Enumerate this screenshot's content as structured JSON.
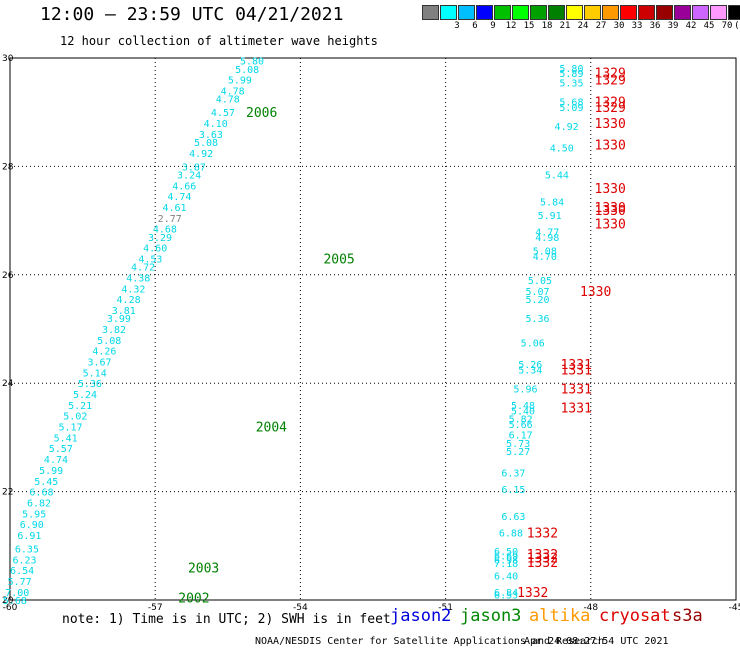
{
  "header": {
    "title": "12:00 — 23:59 UTC 04/21/2021",
    "subtitle": "12 hour collection of altimeter wave heights"
  },
  "colorbar": {
    "cells": [
      {
        "color": "#808080",
        "label": ""
      },
      {
        "color": "#00ffff",
        "label": "3"
      },
      {
        "color": "#00bfff",
        "label": "6"
      },
      {
        "color": "#0000ff",
        "label": "9"
      },
      {
        "color": "#00c000",
        "label": "12"
      },
      {
        "color": "#00ff00",
        "label": "15"
      },
      {
        "color": "#00a000",
        "label": "18"
      },
      {
        "color": "#008000",
        "label": "21"
      },
      {
        "color": "#ffff00",
        "label": "24"
      },
      {
        "color": "#ffcc00",
        "label": "27"
      },
      {
        "color": "#ff9900",
        "label": "30"
      },
      {
        "color": "#ff0000",
        "label": "33"
      },
      {
        "color": "#cc0000",
        "label": "36"
      },
      {
        "color": "#990000",
        "label": "39"
      },
      {
        "color": "#990099",
        "label": "42"
      },
      {
        "color": "#cc66ff",
        "label": "45"
      },
      {
        "color": "#ff99ff",
        "label": "70"
      },
      {
        "color": "#000000",
        "label": "(ft)"
      }
    ]
  },
  "footer": {
    "note": "note: 1) Time is in UTC; 2) SWH is in feet",
    "credit": "NOAA/NESDIS Center for Satellite Applications and Research",
    "timestamp": "Apr 24 08:27:54 UTC 2021"
  },
  "legend": [
    {
      "name": "jason2",
      "color": "#0000dd"
    },
    {
      "name": "jason3",
      "color": "#008800"
    },
    {
      "name": "altika",
      "color": "#ff9900"
    },
    {
      "name": "cryosat",
      "color": "#dd0000"
    },
    {
      "name": "s3a",
      "color": "#990000"
    }
  ],
  "chart_data": {
    "type": "scatter",
    "xlim": [
      -60,
      -45
    ],
    "ylim": [
      20,
      30
    ],
    "x_ticks": [
      -60,
      -57,
      -54,
      -51,
      -48,
      -45
    ],
    "y_ticks": [
      20,
      22,
      24,
      26,
      28,
      30
    ],
    "y_tick_labels": [
      "20",
      "22",
      "24",
      "26",
      "28",
      "30"
    ],
    "grid": true,
    "track_labels": [
      {
        "text": "2006",
        "x": -54.8,
        "y": 29.0,
        "color": "#008000"
      },
      {
        "text": "2005",
        "x": -53.2,
        "y": 26.3,
        "color": "#008000"
      },
      {
        "text": "2004",
        "x": -54.6,
        "y": 23.2,
        "color": "#008000"
      },
      {
        "text": "2003",
        "x": -56.0,
        "y": 20.6,
        "color": "#008000"
      },
      {
        "text": "2002",
        "x": -56.2,
        "y": 20.05,
        "color": "#008000"
      },
      {
        "text": "1329",
        "x": -47.6,
        "y": 29.73,
        "color": "#dd0000"
      },
      {
        "text": "1329",
        "x": -47.6,
        "y": 29.6,
        "color": "#dd0000"
      },
      {
        "text": "1329",
        "x": -47.6,
        "y": 29.2,
        "color": "#dd0000"
      },
      {
        "text": "1329",
        "x": -47.6,
        "y": 29.1,
        "color": "#dd0000"
      },
      {
        "text": "1330",
        "x": -47.6,
        "y": 28.8,
        "color": "#dd0000"
      },
      {
        "text": "1330",
        "x": -47.6,
        "y": 28.4,
        "color": "#dd0000"
      },
      {
        "text": "1330",
        "x": -47.6,
        "y": 27.6,
        "color": "#dd0000"
      },
      {
        "text": "1330",
        "x": -47.6,
        "y": 27.25,
        "color": "#dd0000"
      },
      {
        "text": "1330",
        "x": -47.6,
        "y": 27.2,
        "color": "#dd0000"
      },
      {
        "text": "1330",
        "x": -47.6,
        "y": 26.95,
        "color": "#dd0000"
      },
      {
        "text": "1330",
        "x": -47.9,
        "y": 25.7,
        "color": "#dd0000"
      },
      {
        "text": "1331",
        "x": -48.3,
        "y": 24.35,
        "color": "#dd0000"
      },
      {
        "text": "1331",
        "x": -48.3,
        "y": 24.25,
        "color": "#dd0000"
      },
      {
        "text": "1331",
        "x": -48.3,
        "y": 23.9,
        "color": "#dd0000"
      },
      {
        "text": "1331",
        "x": -48.3,
        "y": 23.55,
        "color": "#dd0000"
      },
      {
        "text": "1332",
        "x": -49.0,
        "y": 21.25,
        "color": "#dd0000"
      },
      {
        "text": "1332",
        "x": -49.0,
        "y": 20.85,
        "color": "#dd0000"
      },
      {
        "text": "1332",
        "x": -49.0,
        "y": 20.78,
        "color": "#dd0000"
      },
      {
        "text": "1332",
        "x": -49.0,
        "y": 20.7,
        "color": "#dd0000"
      },
      {
        "text": "1332",
        "x": -49.2,
        "y": 20.15,
        "color": "#dd0000"
      }
    ],
    "series": [
      {
        "points": [
          {
            "x": -55.0,
            "y": 29.95,
            "v": "5.80"
          },
          {
            "x": -55.1,
            "y": 29.8,
            "v": "5.08"
          },
          {
            "x": -55.25,
            "y": 29.6,
            "v": "5.99"
          },
          {
            "x": -55.4,
            "y": 29.4,
            "v": "4.78"
          },
          {
            "x": -55.5,
            "y": 29.25,
            "v": "4.78"
          },
          {
            "x": -55.6,
            "y": 29.0,
            "v": "4.57"
          },
          {
            "x": -55.75,
            "y": 28.8,
            "v": "4.10"
          },
          {
            "x": -55.85,
            "y": 28.6,
            "v": "3.63"
          },
          {
            "x": -55.95,
            "y": 28.45,
            "v": "5.08"
          },
          {
            "x": -56.05,
            "y": 28.25,
            "v": "4.92"
          },
          {
            "x": -56.2,
            "y": 28.0,
            "v": "3.87"
          },
          {
            "x": -56.3,
            "y": 27.85,
            "v": "3.24"
          },
          {
            "x": -56.4,
            "y": 27.65,
            "v": "4.66"
          },
          {
            "x": -56.5,
            "y": 27.45,
            "v": "4.74"
          },
          {
            "x": -56.6,
            "y": 27.25,
            "v": "4.61"
          },
          {
            "x": -56.7,
            "y": 27.05,
            "v": "2.77"
          },
          {
            "x": -56.8,
            "y": 26.85,
            "v": "4.68"
          },
          {
            "x": -56.9,
            "y": 26.7,
            "v": "3.29"
          },
          {
            "x": -57.0,
            "y": 26.5,
            "v": "4.60"
          },
          {
            "x": -57.1,
            "y": 26.3,
            "v": "4.53"
          },
          {
            "x": -57.25,
            "y": 26.15,
            "v": "4.72"
          },
          {
            "x": -57.35,
            "y": 25.95,
            "v": "4.38"
          },
          {
            "x": -57.45,
            "y": 25.75,
            "v": "4.32"
          },
          {
            "x": -57.55,
            "y": 25.55,
            "v": "4.28"
          },
          {
            "x": -57.65,
            "y": 25.35,
            "v": "3.81"
          },
          {
            "x": -57.75,
            "y": 25.2,
            "v": "3.99"
          },
          {
            "x": -57.85,
            "y": 25.0,
            "v": "3.82"
          },
          {
            "x": -57.95,
            "y": 24.8,
            "v": "5.08"
          },
          {
            "x": -58.05,
            "y": 24.6,
            "v": "4.26"
          },
          {
            "x": -58.15,
            "y": 24.4,
            "v": "3.67"
          },
          {
            "x": -58.25,
            "y": 24.2,
            "v": "5.14"
          },
          {
            "x": -58.35,
            "y": 24.0,
            "v": "5.36"
          },
          {
            "x": -58.45,
            "y": 23.8,
            "v": "5.24"
          },
          {
            "x": -58.55,
            "y": 23.6,
            "v": "5.21"
          },
          {
            "x": -58.65,
            "y": 23.4,
            "v": "5.02"
          },
          {
            "x": -58.75,
            "y": 23.2,
            "v": "5.17"
          },
          {
            "x": -58.85,
            "y": 23.0,
            "v": "5.41"
          },
          {
            "x": -58.95,
            "y": 22.8,
            "v": "5.57"
          },
          {
            "x": -59.05,
            "y": 22.6,
            "v": "4.74"
          },
          {
            "x": -59.15,
            "y": 22.4,
            "v": "5.99"
          },
          {
            "x": -59.25,
            "y": 22.2,
            "v": "5.45"
          },
          {
            "x": -59.35,
            "y": 22.0,
            "v": "6.68"
          },
          {
            "x": -59.4,
            "y": 21.8,
            "v": "6.82"
          },
          {
            "x": -59.5,
            "y": 21.6,
            "v": "5.95"
          },
          {
            "x": -59.55,
            "y": 21.4,
            "v": "6.90"
          },
          {
            "x": -59.6,
            "y": 21.2,
            "v": "6.91"
          },
          {
            "x": -59.65,
            "y": 20.95,
            "v": "6.35"
          },
          {
            "x": -59.7,
            "y": 20.75,
            "v": "6.23"
          },
          {
            "x": -59.75,
            "y": 20.55,
            "v": "6.54"
          },
          {
            "x": -59.8,
            "y": 20.35,
            "v": "5.77"
          },
          {
            "x": -59.85,
            "y": 20.15,
            "v": "7.00"
          },
          {
            "x": -59.9,
            "y": 20.0,
            "v": "5.68"
          }
        ]
      },
      {
        "points": [
          {
            "x": -48.4,
            "y": 29.82,
            "v": "5.80"
          },
          {
            "x": -48.4,
            "y": 29.72,
            "v": "5.89"
          },
          {
            "x": -48.4,
            "y": 29.55,
            "v": "5.35"
          },
          {
            "x": -48.4,
            "y": 29.2,
            "v": "5.68"
          },
          {
            "x": -48.4,
            "y": 29.1,
            "v": "5.09"
          },
          {
            "x": -48.5,
            "y": 28.75,
            "v": "4.92"
          },
          {
            "x": -48.6,
            "y": 28.35,
            "v": "4.50"
          },
          {
            "x": -48.7,
            "y": 27.85,
            "v": "5.44"
          },
          {
            "x": -48.8,
            "y": 27.35,
            "v": "5.84"
          },
          {
            "x": -48.85,
            "y": 27.1,
            "v": "5.91"
          },
          {
            "x": -48.9,
            "y": 26.8,
            "v": "4.77"
          },
          {
            "x": -48.9,
            "y": 26.7,
            "v": "4.98"
          },
          {
            "x": -48.95,
            "y": 26.45,
            "v": "5.08"
          },
          {
            "x": -48.95,
            "y": 26.35,
            "v": "4.70"
          },
          {
            "x": -49.05,
            "y": 25.9,
            "v": "5.05"
          },
          {
            "x": -49.1,
            "y": 25.7,
            "v": "5.07"
          },
          {
            "x": -49.1,
            "y": 25.55,
            "v": "5.20"
          },
          {
            "x": -49.1,
            "y": 25.2,
            "v": "5.36"
          },
          {
            "x": -49.2,
            "y": 24.75,
            "v": "5.06"
          },
          {
            "x": -49.25,
            "y": 24.35,
            "v": "5.26"
          },
          {
            "x": -49.25,
            "y": 24.25,
            "v": "5.34"
          },
          {
            "x": -49.35,
            "y": 23.9,
            "v": "5.96"
          },
          {
            "x": -49.4,
            "y": 23.6,
            "v": "5.48"
          },
          {
            "x": -49.4,
            "y": 23.5,
            "v": "5.40"
          },
          {
            "x": -49.45,
            "y": 23.35,
            "v": "5.82"
          },
          {
            "x": -49.45,
            "y": 23.25,
            "v": "5.66"
          },
          {
            "x": -49.45,
            "y": 23.05,
            "v": "6.17"
          },
          {
            "x": -49.5,
            "y": 22.9,
            "v": "5.73"
          },
          {
            "x": -49.5,
            "y": 22.75,
            "v": "5.27"
          },
          {
            "x": -49.6,
            "y": 22.35,
            "v": "6.37"
          },
          {
            "x": -49.6,
            "y": 22.05,
            "v": "6.15"
          },
          {
            "x": -49.6,
            "y": 21.55,
            "v": "6.63"
          },
          {
            "x": -49.65,
            "y": 21.25,
            "v": "6.88"
          },
          {
            "x": -49.75,
            "y": 20.9,
            "v": "6.50"
          },
          {
            "x": -49.75,
            "y": 20.82,
            "v": "6.69"
          },
          {
            "x": -49.75,
            "y": 20.75,
            "v": "6.98"
          },
          {
            "x": -49.75,
            "y": 20.68,
            "v": "7.18"
          },
          {
            "x": -49.75,
            "y": 20.45,
            "v": "6.40"
          },
          {
            "x": -49.75,
            "y": 20.15,
            "v": "6.84"
          },
          {
            "x": -49.75,
            "y": 20.1,
            "v": "6.53"
          }
        ]
      }
    ]
  }
}
